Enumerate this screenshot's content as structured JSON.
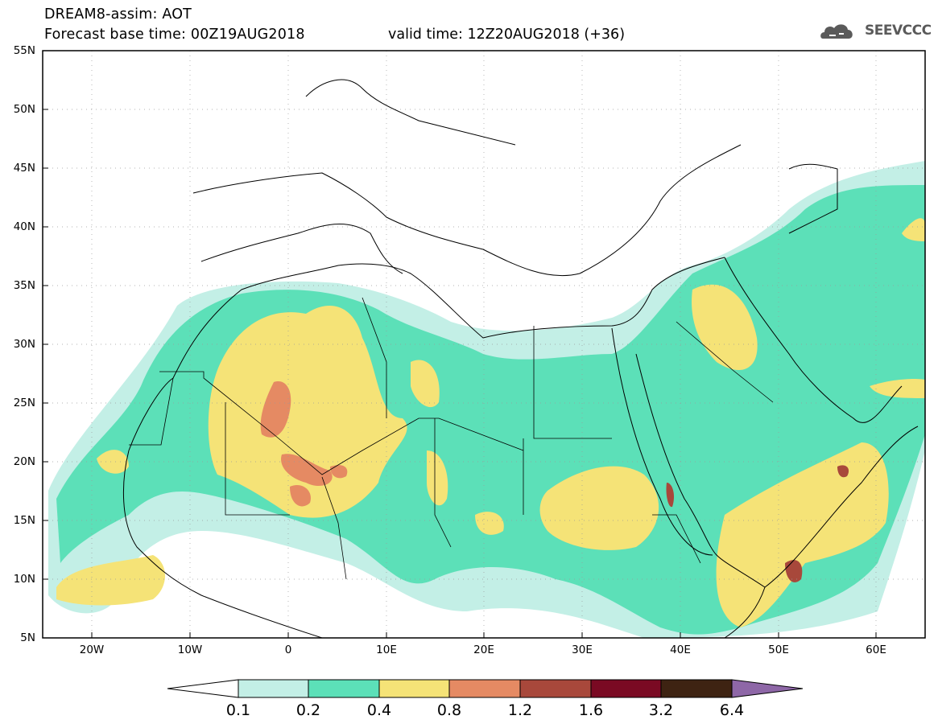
{
  "header": {
    "title_line1": "DREAM8-assim: AOT",
    "title_line2": "Forecast base time: 00Z19AUG2018",
    "valid_time": "valid time: 12Z20AUG2018 (+36)"
  },
  "logo": {
    "text": "SEEVCCC",
    "icon": "cloud-logo-icon"
  },
  "map": {
    "lon_range": [
      -25,
      65
    ],
    "lat_range": [
      5,
      55
    ],
    "lat_labels": [
      "55N",
      "50N",
      "45N",
      "40N",
      "35N",
      "30N",
      "25N",
      "20N",
      "15N",
      "10N",
      "5N"
    ],
    "lon_labels": [
      "20W",
      "10W",
      "0",
      "10E",
      "20E",
      "30E",
      "40E",
      "50E",
      "60E"
    ]
  },
  "colorbar": {
    "levels": [
      "0.1",
      "0.2",
      "0.4",
      "0.8",
      "1.2",
      "1.6",
      "3.2",
      "6.4"
    ],
    "colors": [
      "#c3efe6",
      "#5ce0b8",
      "#f5e377",
      "#e58a63",
      "#a8483b",
      "#7a0a23",
      "#3e2312",
      "#8e67a7"
    ]
  }
}
